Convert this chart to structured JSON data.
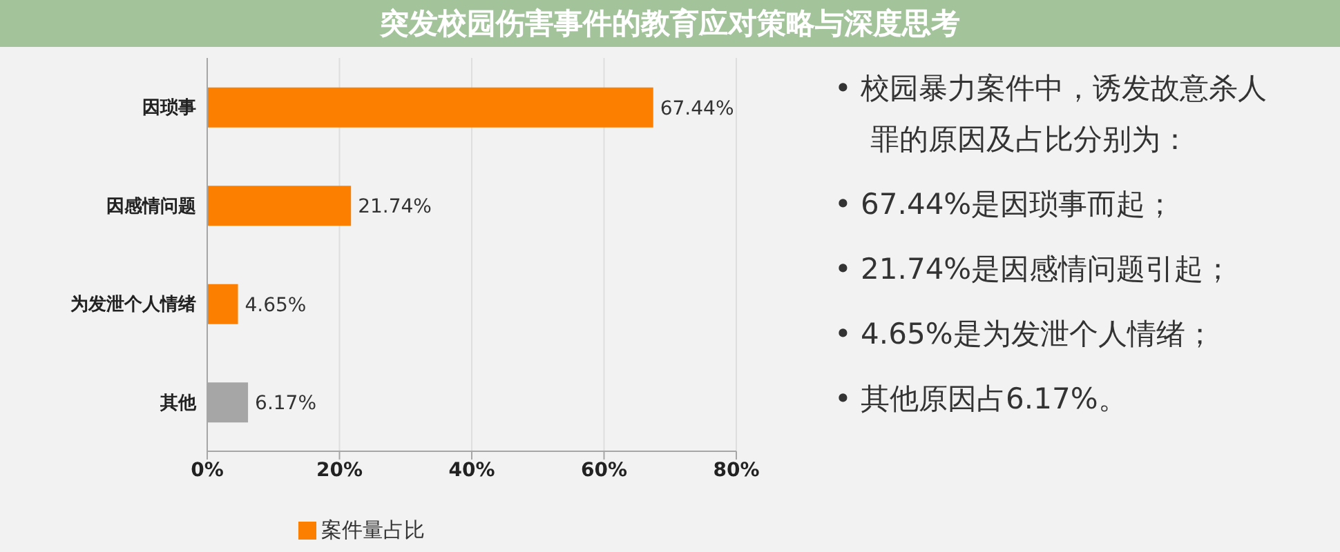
{
  "chart_data": {
    "type": "bar",
    "title": "突发校园伤害事件的教育应对策略与深度思考",
    "orientation": "horizontal",
    "categories": [
      "因琐事",
      "因感情问题",
      "为发泄个人情绪",
      "其他"
    ],
    "series": [
      {
        "name": "案件量占比",
        "color": "#fc7f00",
        "colors": [
          "#fc7f00",
          "#fc7f00",
          "#fc7f00",
          "#a6a6a6"
        ],
        "values": [
          67.44,
          21.74,
          4.65,
          6.17
        ],
        "value_labels": [
          "67.44%",
          "21.74%",
          "4.65%",
          "6.17%"
        ]
      }
    ],
    "xlim": [
      0,
      80
    ],
    "xticks": [
      {
        "value": 0,
        "label": "0%"
      },
      {
        "value": 20,
        "label": "20%"
      },
      {
        "value": 40,
        "label": "40%"
      },
      {
        "value": 60,
        "label": "60%"
      },
      {
        "value": 80,
        "label": "80%"
      }
    ],
    "grid": "x",
    "legend": "bottom",
    "annotations": [
      "• 校园暴力案件中，诱发故意杀人罪的原因及占比分别为：",
      "• 67.44%是因琐事而起；",
      "• 21.74%是因感情问题引起；",
      "• 4.65%是为发泄个人情绪；",
      "• 其他原因占6.17%。"
    ]
  }
}
